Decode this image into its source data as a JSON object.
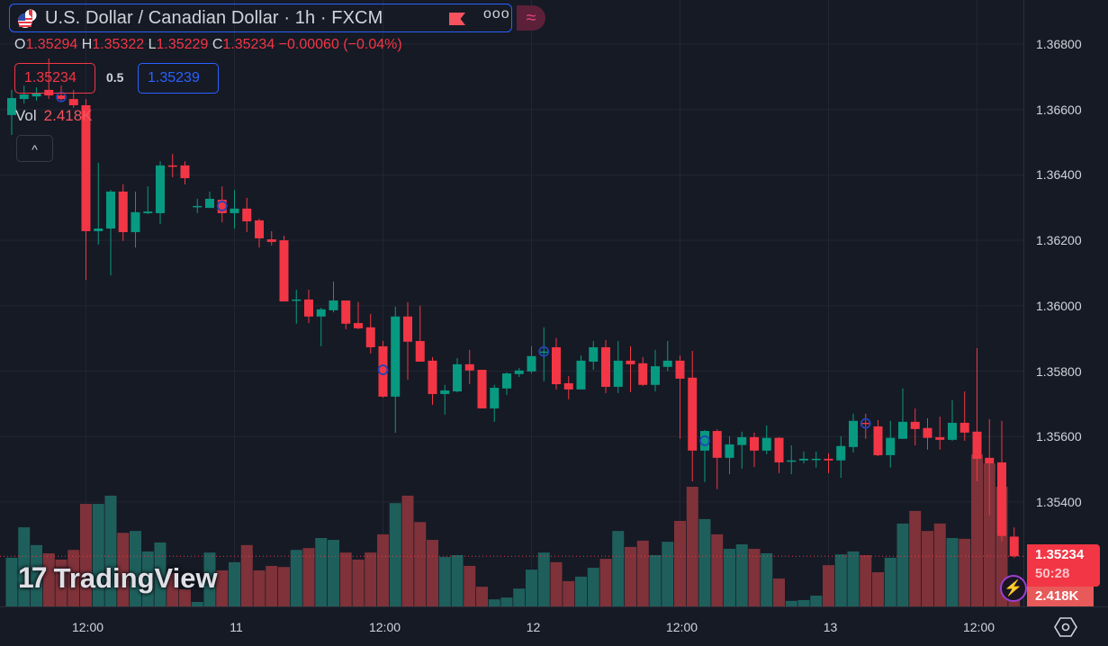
{
  "header": {
    "title": "U.S. Dollar / Canadian Dollar · 1h · FXCM",
    "more_label": "ooo",
    "indicator_button": "≈"
  },
  "ohlc": {
    "o_label": "O",
    "o": "1.35294",
    "h_label": "H",
    "h": "1.35322",
    "l_label": "L",
    "l": "1.35229",
    "c_label": "C",
    "c": "1.35234",
    "change": "−0.00060 (−0.04%)"
  },
  "quote": {
    "bid": "1.35234",
    "spread": "0.5",
    "ask": "1.35239"
  },
  "volume_legend": {
    "label": "Vol",
    "value": "2.418K"
  },
  "collapse_label": "^",
  "watermark": {
    "logo": "17",
    "text": "TradingView"
  },
  "last_price": {
    "price": "1.35234",
    "countdown": "50:28",
    "volume": "2.418K"
  },
  "colors": {
    "up": "#089981",
    "down": "#f23645",
    "up_vol": "#1e5f5c",
    "down_vol": "#7f3239",
    "grid": "#232632",
    "marker": "#2443b8"
  },
  "chart_data": {
    "type": "candlestick",
    "symbol": "USDCAD",
    "interval": "1h",
    "y_ticks": [
      "1.36800",
      "1.36600",
      "1.36400",
      "1.36200",
      "1.36000",
      "1.35800",
      "1.35600",
      "1.35400"
    ],
    "ylim": [
      1.3531,
      1.369
    ],
    "x_ticks": [
      {
        "index": 6,
        "label": "12:00"
      },
      {
        "index": 18,
        "label": "11"
      },
      {
        "index": 30,
        "label": "12:00"
      },
      {
        "index": 42,
        "label": "12"
      },
      {
        "index": 54,
        "label": "12:00"
      },
      {
        "index": 66,
        "label": "13"
      },
      {
        "index": 78,
        "label": "12:00"
      }
    ],
    "volume_unit": "K",
    "candles": [
      [
        1.36583,
        1.3666,
        1.36522,
        1.36635,
        13.1
      ],
      [
        1.36632,
        1.36673,
        1.36618,
        1.36646,
        21.3
      ],
      [
        1.3664,
        1.36668,
        1.36627,
        1.36651,
        16.5
      ],
      [
        1.3666,
        1.36756,
        1.36632,
        1.36643,
        14.3
      ],
      [
        1.36643,
        1.36673,
        1.36627,
        1.36632,
        12.6
      ],
      [
        1.36632,
        1.3666,
        1.36605,
        1.36613,
        15.2
      ],
      [
        1.36613,
        1.36632,
        1.36079,
        1.36228,
        27.6
      ],
      [
        1.36228,
        1.36437,
        1.36187,
        1.36236,
        27.6
      ],
      [
        1.36236,
        1.36354,
        1.36093,
        1.36349,
        29.8
      ],
      [
        1.36349,
        1.36371,
        1.36198,
        1.36225,
        19.8
      ],
      [
        1.36225,
        1.36349,
        1.36178,
        1.36286,
        20.3
      ],
      [
        1.36283,
        1.36365,
        1.3628,
        1.36288,
        14.8
      ],
      [
        1.36283,
        1.36442,
        1.3625,
        1.36429,
        17.2
      ],
      [
        1.36429,
        1.36464,
        1.36393,
        1.36426,
        9.0
      ],
      [
        1.36429,
        1.36442,
        1.36371,
        1.3639,
        4.6
      ],
      [
        1.36302,
        1.36327,
        1.36283,
        1.36305,
        1.2
      ],
      [
        1.36299,
        1.36349,
        1.36299,
        1.36327,
        14.5
      ],
      [
        1.36324,
        1.36365,
        1.36255,
        1.36283,
        9.7
      ],
      [
        1.36283,
        1.36354,
        1.36236,
        1.36297,
        11.9
      ],
      [
        1.36297,
        1.3633,
        1.36225,
        1.36258,
        16.5
      ],
      [
        1.36261,
        1.36266,
        1.36178,
        1.36206,
        9.7
      ],
      [
        1.36203,
        1.36228,
        1.36184,
        1.36195,
        10.9
      ],
      [
        1.362,
        1.36214,
        1.36013,
        1.36013,
        10.6
      ],
      [
        1.36016,
        1.36049,
        1.35945,
        1.36019,
        15.2
      ],
      [
        1.36019,
        1.36049,
        1.35947,
        1.35967,
        15.7
      ],
      [
        1.35967,
        1.35994,
        1.35876,
        1.35989,
        18.4
      ],
      [
        1.35986,
        1.36074,
        1.3598,
        1.36016,
        17.9
      ],
      [
        1.36016,
        1.36016,
        1.35928,
        1.35945,
        14.5
      ],
      [
        1.35947,
        1.36011,
        1.35928,
        1.35931,
        12.6
      ],
      [
        1.35934,
        1.35975,
        1.35854,
        1.35873,
        14.5
      ],
      [
        1.35876,
        1.35892,
        1.35719,
        1.35722,
        19.4
      ],
      [
        1.35722,
        1.35997,
        1.35612,
        1.35967,
        27.8
      ],
      [
        1.35967,
        1.36011,
        1.35774,
        1.3589,
        29.8
      ],
      [
        1.35892,
        1.36,
        1.35829,
        1.35829,
        22.7
      ],
      [
        1.35832,
        1.35843,
        1.35697,
        1.3573,
        17.9
      ],
      [
        1.3573,
        1.35758,
        1.35667,
        1.35741,
        13.3
      ],
      [
        1.35738,
        1.3584,
        1.35735,
        1.35821,
        13.8
      ],
      [
        1.35821,
        1.35865,
        1.3576,
        1.35802,
        10.9
      ],
      [
        1.35804,
        1.35804,
        1.35686,
        1.35686,
        5.3
      ],
      [
        1.35686,
        1.35758,
        1.35645,
        1.35749,
        1.9
      ],
      [
        1.35747,
        1.35796,
        1.35727,
        1.35793,
        2.4
      ],
      [
        1.35791,
        1.3581,
        1.35782,
        1.35802,
        4.8
      ],
      [
        1.35799,
        1.35876,
        1.35793,
        1.35846,
        9.9
      ],
      [
        1.35857,
        1.35934,
        1.35769,
        1.3586,
        14.5
      ],
      [
        1.35873,
        1.35901,
        1.35744,
        1.3576,
        11.9
      ],
      [
        1.35763,
        1.35785,
        1.35714,
        1.35744,
        6.8
      ],
      [
        1.35744,
        1.35848,
        1.35744,
        1.35832,
        8.0
      ],
      [
        1.35829,
        1.35892,
        1.35804,
        1.35873,
        10.4
      ],
      [
        1.35873,
        1.35895,
        1.35733,
        1.35752,
        12.8
      ],
      [
        1.35752,
        1.35892,
        1.35733,
        1.35832,
        20.3
      ],
      [
        1.35832,
        1.35876,
        1.35736,
        1.35821,
        16.0
      ],
      [
        1.35824,
        1.35843,
        1.35755,
        1.35758,
        17.7
      ],
      [
        1.35758,
        1.35865,
        1.35738,
        1.35815,
        13.8
      ],
      [
        1.35813,
        1.35892,
        1.358,
        1.35832,
        17.4
      ],
      [
        1.35832,
        1.35848,
        1.35593,
        1.35777,
        23.0
      ],
      [
        1.3578,
        1.35862,
        1.35463,
        1.35557,
        32.2
      ],
      [
        1.35557,
        1.3562,
        1.35461,
        1.35617,
        23.5
      ],
      [
        1.35617,
        1.35622,
        1.35439,
        1.35535,
        19.4
      ],
      [
        1.35535,
        1.35601,
        1.35485,
        1.35576,
        15.5
      ],
      [
        1.35574,
        1.35615,
        1.35502,
        1.35598,
        16.7
      ],
      [
        1.35598,
        1.35612,
        1.35507,
        1.35557,
        15.5
      ],
      [
        1.35557,
        1.35634,
        1.35546,
        1.35596,
        14.3
      ],
      [
        1.35596,
        1.35598,
        1.35488,
        1.35521,
        7.5
      ],
      [
        1.35524,
        1.35573,
        1.35485,
        1.35527,
        1.5
      ],
      [
        1.35527,
        1.35554,
        1.35518,
        1.35532,
        1.7
      ],
      [
        1.3553,
        1.35554,
        1.35505,
        1.35532,
        2.9
      ],
      [
        1.35532,
        1.35549,
        1.35488,
        1.35527,
        11.1
      ],
      [
        1.35527,
        1.35601,
        1.35474,
        1.35571,
        14.0
      ],
      [
        1.35568,
        1.3567,
        1.35551,
        1.35648,
        14.8
      ],
      [
        1.35642,
        1.3567,
        1.35593,
        1.35639,
        13.8
      ],
      [
        1.35631,
        1.3565,
        1.3554,
        1.35543,
        9.2
      ],
      [
        1.35543,
        1.35648,
        1.35505,
        1.35596,
        13.1
      ],
      [
        1.35593,
        1.35747,
        1.35593,
        1.35645,
        22.3
      ],
      [
        1.35645,
        1.35686,
        1.35573,
        1.35623,
        25.7
      ],
      [
        1.35626,
        1.35656,
        1.3556,
        1.35596,
        20.3
      ],
      [
        1.35598,
        1.35661,
        1.3556,
        1.3559,
        22.3
      ],
      [
        1.3559,
        1.35711,
        1.35587,
        1.35642,
        18.4
      ],
      [
        1.35642,
        1.35738,
        1.35587,
        1.35612,
        18.2
      ],
      [
        1.35615,
        1.3587,
        1.35463,
        1.35532,
        40.9
      ],
      [
        1.35535,
        1.35653,
        1.35359,
        1.35518,
        38.5
      ],
      [
        1.35521,
        1.35648,
        1.35279,
        1.35296,
        32.2
      ],
      [
        1.35294,
        1.35322,
        1.35229,
        1.35234,
        2.418
      ]
    ],
    "candle_fields": [
      "open",
      "high",
      "low",
      "close",
      "volume"
    ],
    "markers": [
      {
        "index": 4,
        "price": 1.36638
      },
      {
        "index": 17,
        "price": 1.36305
      },
      {
        "index": 30,
        "price": 1.35804
      },
      {
        "index": 43,
        "price": 1.3586
      },
      {
        "index": 56,
        "price": 1.35587
      },
      {
        "index": 69,
        "price": 1.3564
      }
    ]
  }
}
